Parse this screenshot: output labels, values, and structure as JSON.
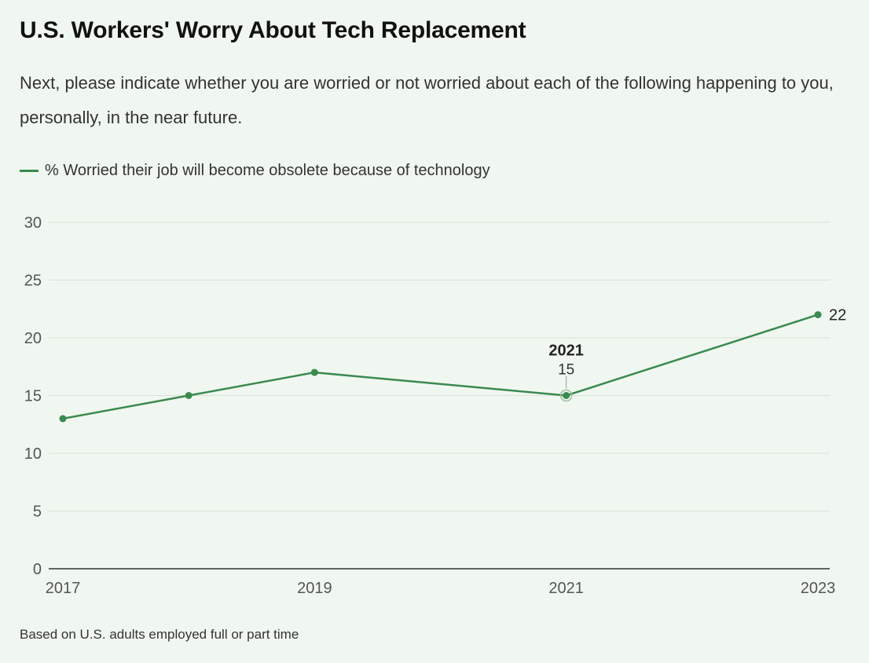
{
  "title": "U.S. Workers' Worry About Tech Replacement",
  "subtitle": "Next, please indicate whether you are worried or not worried about each of the following happening to you, personally, in the near future.",
  "footnote": "Based on U.S. adults employed full or part time",
  "colors": {
    "series": "#3a8a4f",
    "grid": "#d9e3d9",
    "axis": "#333333"
  },
  "chart_data": {
    "type": "line",
    "title": "U.S. Workers' Worry About Tech Replacement",
    "xlabel": "",
    "ylabel": "",
    "x_ticks": [
      "2017",
      "2019",
      "2021",
      "2023"
    ],
    "y_ticks": [
      0,
      5,
      10,
      15,
      20,
      25,
      30
    ],
    "ylim": [
      0,
      30
    ],
    "xlim": [
      2017,
      2023
    ],
    "grid": true,
    "legend_position": "top-left",
    "series": [
      {
        "name": "% Worried their job will become obsolete because of technology",
        "x": [
          2017,
          2018,
          2019,
          2021,
          2023
        ],
        "y": [
          13,
          15,
          17,
          15,
          22
        ]
      }
    ],
    "annotations": [
      {
        "x": 2021,
        "y": 15,
        "label_year": "2021",
        "label_value": "15"
      }
    ],
    "end_label": {
      "x": 2023,
      "y": 22,
      "text": "22"
    }
  }
}
